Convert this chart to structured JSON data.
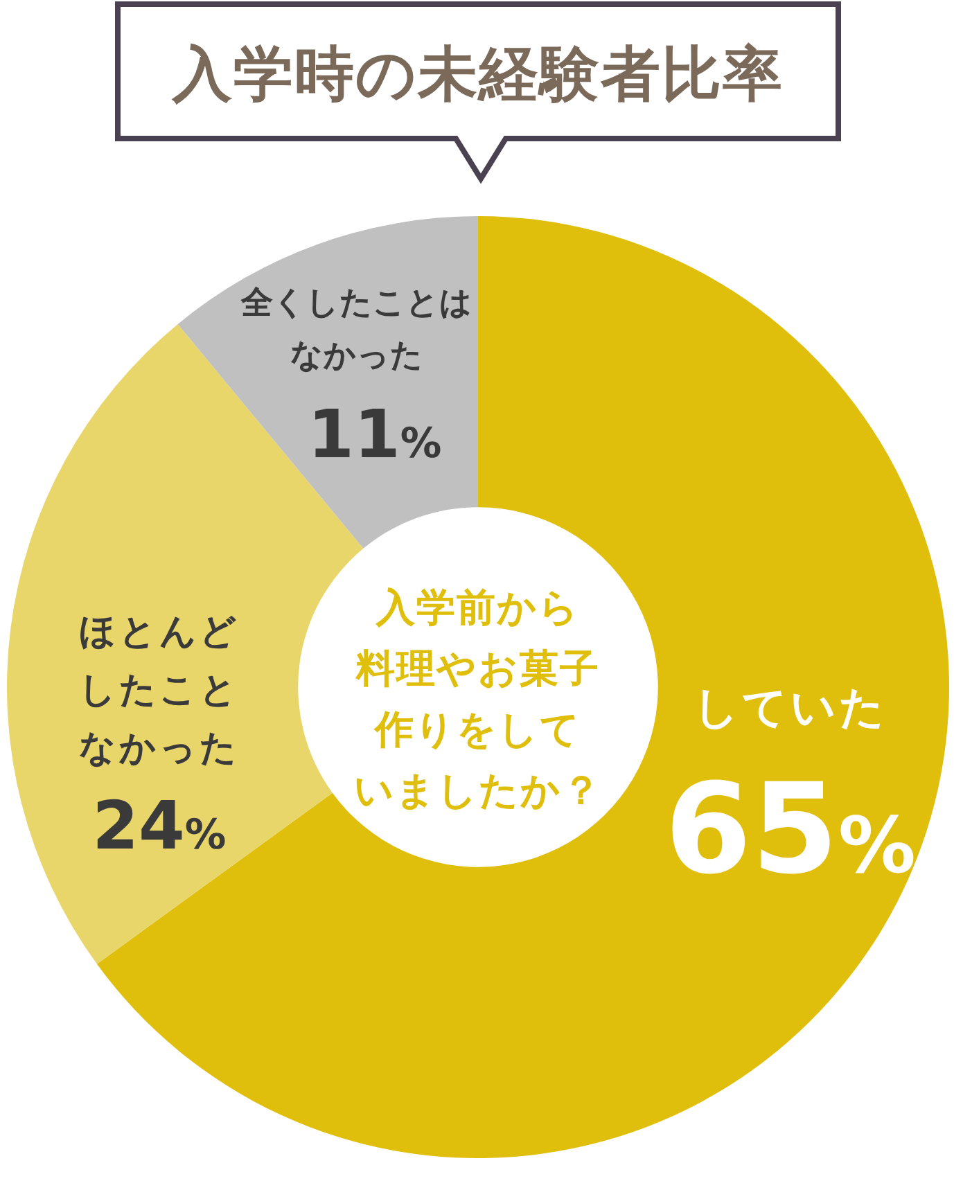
{
  "chart_data": {
    "type": "donut",
    "title": "入学時の未経験者比率",
    "categories": [
      "していた",
      "ほとんどしたことなかった",
      "全くしたことはなかった"
    ],
    "values": [
      65,
      24,
      11
    ],
    "colors": [
      "#dfbf0c",
      "#e9d66b",
      "#c0c0c0"
    ],
    "value_labels": [
      "65%",
      "24%",
      "11%"
    ],
    "annotations": [
      "入学前から料理やお菓子作りをしていましたか？"
    ]
  }
}
